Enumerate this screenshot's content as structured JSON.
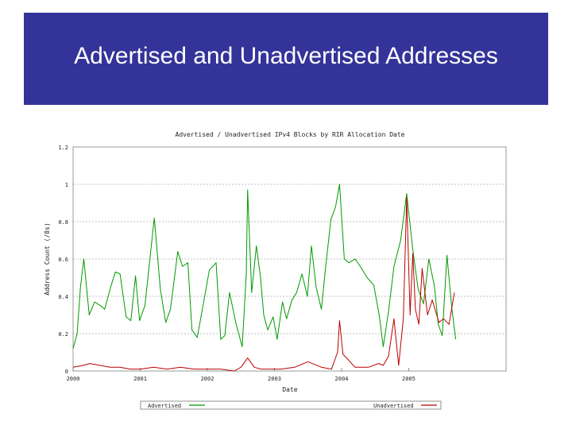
{
  "slide": {
    "title": "Advertised and Unadvertised Addresses",
    "banner_color": "#333399"
  },
  "chart_data": {
    "type": "line",
    "title": "Advertised / Unadvertised IPv4 Blocks by RIR Allocation Date",
    "xlabel": "Date",
    "ylabel": "Address Count (/8s)",
    "xlim": [
      2000,
      2006.45
    ],
    "ylim": [
      0,
      1.2
    ],
    "xticks": [
      {
        "value": 2000,
        "label": "2000"
      },
      {
        "value": 2001,
        "label": "2001"
      },
      {
        "value": 2002,
        "label": "2002"
      },
      {
        "value": 2003,
        "label": "2003"
      },
      {
        "value": 2004,
        "label": "2004"
      },
      {
        "value": 2005,
        "label": "2005"
      }
    ],
    "yticks": [
      {
        "value": 0,
        "label": "0"
      },
      {
        "value": 0.2,
        "label": "0.2"
      },
      {
        "value": 0.4,
        "label": "0.4"
      },
      {
        "value": 0.6,
        "label": "0.6"
      },
      {
        "value": 0.8,
        "label": "0.8"
      },
      {
        "value": 1,
        "label": "1"
      },
      {
        "value": 1.2,
        "label": "1.2"
      }
    ],
    "grid": true,
    "legend_position": "bottom",
    "series": [
      {
        "name": "Advertised",
        "color": "#009900",
        "points": [
          [
            2000.0,
            0.12
          ],
          [
            2000.06,
            0.2
          ],
          [
            2000.11,
            0.45
          ],
          [
            2000.16,
            0.6
          ],
          [
            2000.24,
            0.3
          ],
          [
            2000.32,
            0.37
          ],
          [
            2000.41,
            0.35
          ],
          [
            2000.47,
            0.33
          ],
          [
            2000.56,
            0.45
          ],
          [
            2000.63,
            0.53
          ],
          [
            2000.7,
            0.52
          ],
          [
            2000.79,
            0.29
          ],
          [
            2000.86,
            0.27
          ],
          [
            2000.93,
            0.51
          ],
          [
            2000.99,
            0.27
          ],
          [
            2001.07,
            0.35
          ],
          [
            2001.21,
            0.82
          ],
          [
            2001.3,
            0.44
          ],
          [
            2001.38,
            0.26
          ],
          [
            2001.45,
            0.33
          ],
          [
            2001.56,
            0.64
          ],
          [
            2001.63,
            0.56
          ],
          [
            2001.71,
            0.58
          ],
          [
            2001.77,
            0.22
          ],
          [
            2001.85,
            0.18
          ],
          [
            2001.95,
            0.38
          ],
          [
            2002.03,
            0.54
          ],
          [
            2002.13,
            0.58
          ],
          [
            2002.2,
            0.17
          ],
          [
            2002.26,
            0.19
          ],
          [
            2002.33,
            0.42
          ],
          [
            2002.43,
            0.25
          ],
          [
            2002.52,
            0.13
          ],
          [
            2002.58,
            0.52
          ],
          [
            2002.6,
            0.97
          ],
          [
            2002.66,
            0.42
          ],
          [
            2002.73,
            0.67
          ],
          [
            2002.79,
            0.51
          ],
          [
            2002.84,
            0.3
          ],
          [
            2002.9,
            0.22
          ],
          [
            2002.98,
            0.29
          ],
          [
            2003.04,
            0.17
          ],
          [
            2003.12,
            0.37
          ],
          [
            2003.18,
            0.28
          ],
          [
            2003.26,
            0.38
          ],
          [
            2003.33,
            0.42
          ],
          [
            2003.41,
            0.52
          ],
          [
            2003.49,
            0.4
          ],
          [
            2003.55,
            0.67
          ],
          [
            2003.62,
            0.45
          ],
          [
            2003.7,
            0.33
          ],
          [
            2003.76,
            0.55
          ],
          [
            2003.84,
            0.81
          ],
          [
            2003.91,
            0.88
          ],
          [
            2003.97,
            1.0
          ],
          [
            2004.04,
            0.6
          ],
          [
            2004.11,
            0.58
          ],
          [
            2004.2,
            0.6
          ],
          [
            2004.28,
            0.56
          ],
          [
            2004.38,
            0.5
          ],
          [
            2004.48,
            0.46
          ],
          [
            2004.56,
            0.3
          ],
          [
            2004.62,
            0.13
          ],
          [
            2004.7,
            0.32
          ],
          [
            2004.78,
            0.56
          ],
          [
            2004.88,
            0.7
          ],
          [
            2004.97,
            0.95
          ],
          [
            2005.06,
            0.65
          ],
          [
            2005.14,
            0.44
          ],
          [
            2005.22,
            0.36
          ],
          [
            2005.3,
            0.6
          ],
          [
            2005.38,
            0.46
          ],
          [
            2005.44,
            0.25
          ],
          [
            2005.5,
            0.19
          ],
          [
            2005.57,
            0.62
          ],
          [
            2005.64,
            0.34
          ],
          [
            2005.7,
            0.17
          ]
        ]
      },
      {
        "name": "Unadvertised",
        "color": "#bb0000",
        "points": [
          [
            2000.0,
            0.02
          ],
          [
            2000.15,
            0.03
          ],
          [
            2000.25,
            0.04
          ],
          [
            2000.4,
            0.03
          ],
          [
            2000.55,
            0.02
          ],
          [
            2000.7,
            0.02
          ],
          [
            2000.85,
            0.01
          ],
          [
            2001.0,
            0.01
          ],
          [
            2001.2,
            0.02
          ],
          [
            2001.4,
            0.01
          ],
          [
            2001.6,
            0.02
          ],
          [
            2001.8,
            0.01
          ],
          [
            2002.0,
            0.01
          ],
          [
            2002.2,
            0.01
          ],
          [
            2002.4,
            0.0
          ],
          [
            2002.5,
            0.02
          ],
          [
            2002.6,
            0.07
          ],
          [
            2002.7,
            0.02
          ],
          [
            2002.8,
            0.01
          ],
          [
            2002.95,
            0.01
          ],
          [
            2003.1,
            0.01
          ],
          [
            2003.3,
            0.02
          ],
          [
            2003.5,
            0.05
          ],
          [
            2003.7,
            0.02
          ],
          [
            2003.85,
            0.01
          ],
          [
            2003.94,
            0.1
          ],
          [
            2003.97,
            0.27
          ],
          [
            2004.02,
            0.09
          ],
          [
            2004.1,
            0.06
          ],
          [
            2004.2,
            0.02
          ],
          [
            2004.4,
            0.02
          ],
          [
            2004.55,
            0.04
          ],
          [
            2004.62,
            0.03
          ],
          [
            2004.7,
            0.08
          ],
          [
            2004.78,
            0.28
          ],
          [
            2004.85,
            0.03
          ],
          [
            2004.92,
            0.28
          ],
          [
            2004.97,
            0.93
          ],
          [
            2005.02,
            0.3
          ],
          [
            2005.06,
            0.63
          ],
          [
            2005.1,
            0.33
          ],
          [
            2005.15,
            0.25
          ],
          [
            2005.2,
            0.55
          ],
          [
            2005.28,
            0.3
          ],
          [
            2005.35,
            0.38
          ],
          [
            2005.45,
            0.26
          ],
          [
            2005.52,
            0.28
          ],
          [
            2005.6,
            0.25
          ],
          [
            2005.68,
            0.42
          ]
        ]
      }
    ]
  }
}
